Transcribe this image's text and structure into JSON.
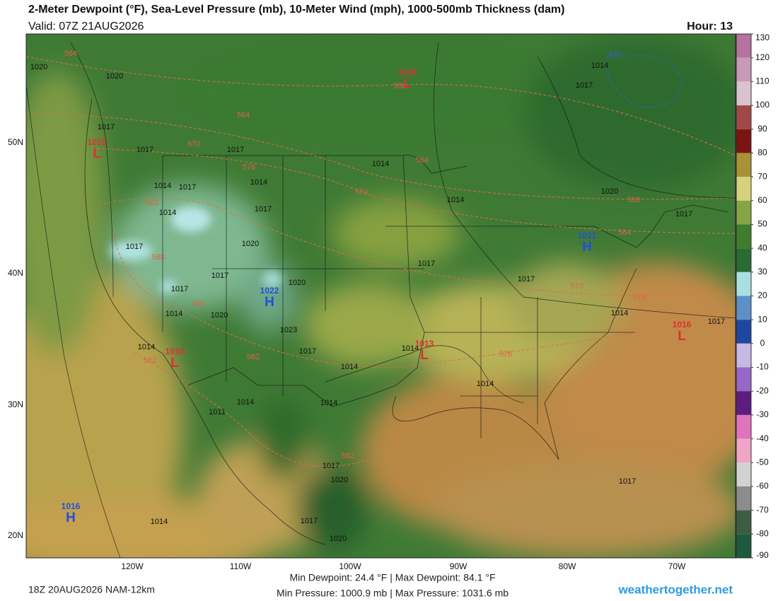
{
  "header": {
    "title": "2-Meter Dewpoint (°F), Sea-Level Pressure (mb), 10-Meter Wind (mph), 1000-500mb Thickness (dam)",
    "valid": "Valid: 07Z 21AUG2026",
    "hour": "Hour: 13"
  },
  "colorbar": {
    "ticks": [
      130,
      120,
      110,
      100,
      90,
      80,
      70,
      60,
      50,
      40,
      30,
      20,
      10,
      0,
      -10,
      -20,
      -30,
      -40,
      -50,
      -60,
      -70,
      -80,
      -90
    ],
    "colors": [
      "#b5739e",
      "#c99ab8",
      "#d9c3cf",
      "#a04848",
      "#7c1414",
      "#a89235",
      "#d6d27c",
      "#86a546",
      "#3f7c2c",
      "#2c6a34",
      "#a9e0df",
      "#5d8fc8",
      "#1f47a0",
      "#c7b8e6",
      "#9866c6",
      "#5c1c80",
      "#dd74bd",
      "#f0a5c6",
      "#d2d2d2",
      "#8c8c8c",
      "#3d5c44",
      "#1e5a3e"
    ]
  },
  "latitude_labels": [
    "50N",
    "40N",
    "30N",
    "20N"
  ],
  "longitude_labels": [
    "120W",
    "110W",
    "100W",
    "90W",
    "80W",
    "70W"
  ],
  "pressure_labels": [
    "1020",
    "1020",
    "1017",
    "1017",
    "1017",
    "1014",
    "1017",
    "1014",
    "1014",
    "1017",
    "1020",
    "1017",
    "1017",
    "1014",
    "1020",
    "1020",
    "1023",
    "1017",
    "1014",
    "1014",
    "1014",
    "1017",
    "1017",
    "1017",
    "1014",
    "1020",
    "1017",
    "1014",
    "1014",
    "1014",
    "1014",
    "1011",
    "1017",
    "1020",
    "1017",
    "1020",
    "1014",
    "1017",
    "1017",
    "1014",
    "1014",
    "1017"
  ],
  "thickness_labels": [
    "564",
    "564",
    "570",
    "576",
    "570",
    "564",
    "582",
    "588",
    "588",
    "582",
    "582",
    "576",
    "582",
    "576",
    "573",
    "588",
    "564",
    "558",
    "540"
  ],
  "highs": [
    {
      "letter": "H",
      "value": "1016"
    },
    {
      "letter": "H",
      "value": "1021"
    },
    {
      "letter": "H",
      "value": "1022"
    }
  ],
  "lows": [
    {
      "letter": "L",
      "value": "1010"
    },
    {
      "letter": "L",
      "value": "1015"
    },
    {
      "letter": "L",
      "value": "1010"
    },
    {
      "letter": "L",
      "value": "1013"
    },
    {
      "letter": "L",
      "value": "1016"
    }
  ],
  "footer": {
    "run": "18Z 20AUG2026 NAM-12km",
    "dewpoint_range": "Min Dewpoint:  24.4 °F | Max Dewpoint:  84.1 °F",
    "pressure_range": "Min Pressure: 1000.9 mb | Max Pressure: 1031.6 mb",
    "site": "weathertogether.net"
  }
}
